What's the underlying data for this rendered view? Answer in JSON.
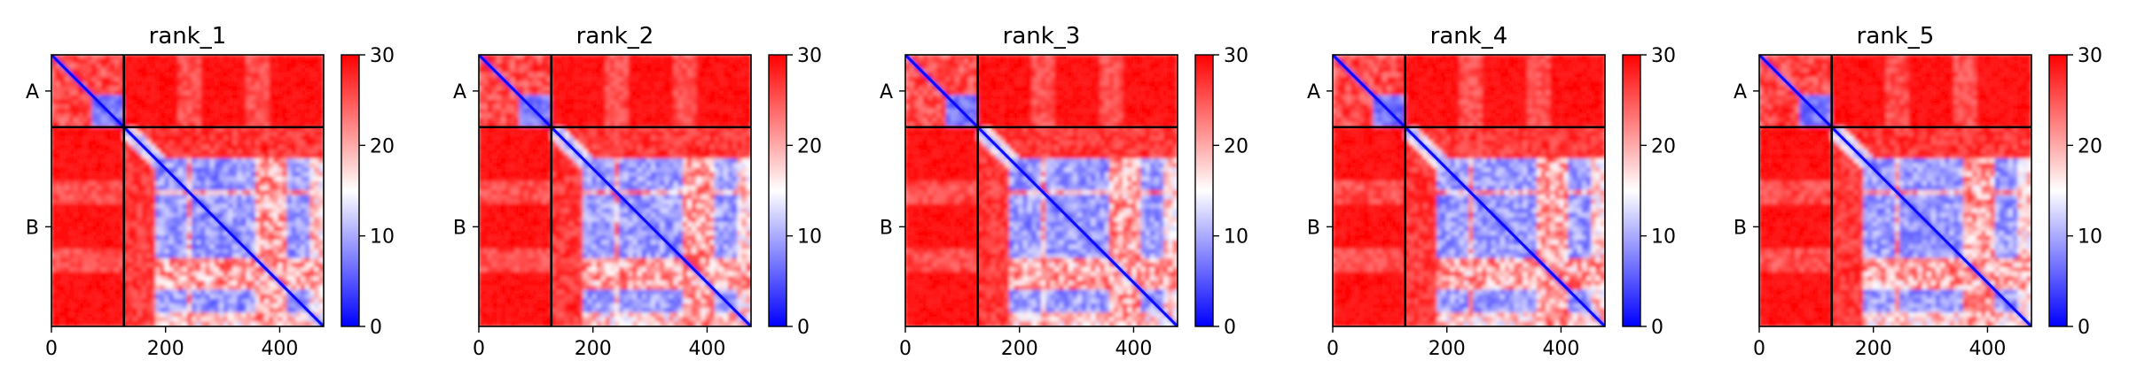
{
  "chart_data": {
    "type": "heatmap",
    "panels": [
      {
        "title": "rank_1"
      },
      {
        "title": "rank_2"
      },
      {
        "title": "rank_3"
      },
      {
        "title": "rank_4"
      },
      {
        "title": "rank_5"
      }
    ],
    "chains": [
      {
        "label": "A",
        "start": 0,
        "end": 127
      },
      {
        "label": "B",
        "start": 127,
        "end": 477
      }
    ],
    "residues": 477,
    "xlim": [
      0,
      477
    ],
    "ylim": [
      477,
      0
    ],
    "xticks": [
      0,
      200,
      400
    ],
    "xtick_labels": [
      "0",
      "200",
      "400"
    ],
    "colorbar": {
      "vmin": 0,
      "vmax": 30,
      "ticks": [
        0,
        10,
        20,
        30
      ],
      "tick_labels": [
        "0",
        "10",
        "20",
        "30"
      ],
      "colormap": "bwr",
      "low_color": "#0000ff",
      "mid_color": "#ffffff",
      "high_color": "#ff0000"
    },
    "approx_regions": {
      "high_error_value": 30,
      "diagonal_value": 0,
      "chainA_domain": {
        "range": [
          0,
          127
        ],
        "value": 3
      },
      "chainB_domain1": {
        "range": [
          180,
          477
        ],
        "value": 6
      },
      "chainB_gap_rows": [
        [
          240,
          250
        ],
        [
          355,
          370
        ],
        [
          375,
          410
        ]
      ]
    }
  }
}
